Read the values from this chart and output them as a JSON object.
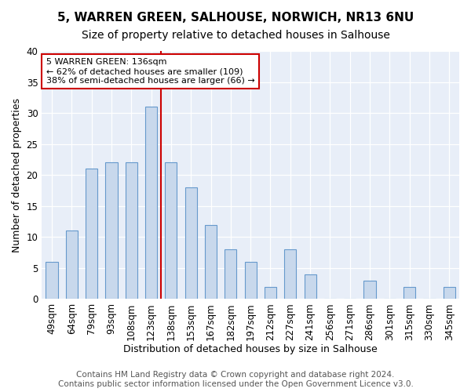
{
  "title1": "5, WARREN GREEN, SALHOUSE, NORWICH, NR13 6NU",
  "title2": "Size of property relative to detached houses in Salhouse",
  "xlabel": "Distribution of detached houses by size in Salhouse",
  "ylabel": "Number of detached properties",
  "categories": [
    "49sqm",
    "64sqm",
    "79sqm",
    "93sqm",
    "108sqm",
    "123sqm",
    "138sqm",
    "153sqm",
    "167sqm",
    "182sqm",
    "197sqm",
    "212sqm",
    "227sqm",
    "241sqm",
    "256sqm",
    "271sqm",
    "286sqm",
    "301sqm",
    "315sqm",
    "330sqm",
    "345sqm"
  ],
  "values": [
    6,
    11,
    21,
    22,
    22,
    31,
    22,
    18,
    12,
    8,
    6,
    2,
    8,
    4,
    0,
    0,
    3,
    0,
    2,
    0,
    2
  ],
  "bar_color": "#c8d8ec",
  "bar_edge_color": "#6699cc",
  "vline_x_index": 6,
  "vline_color": "#cc0000",
  "annotation_line1": "5 WARREN GREEN: 136sqm",
  "annotation_line2": "← 62% of detached houses are smaller (109)",
  "annotation_line3": "38% of semi-detached houses are larger (66) →",
  "annotation_box_color": "white",
  "annotation_box_edge": "#cc0000",
  "ylim": [
    0,
    40
  ],
  "yticks": [
    0,
    5,
    10,
    15,
    20,
    25,
    30,
    35,
    40
  ],
  "footer1": "Contains HM Land Registry data © Crown copyright and database right 2024.",
  "footer2": "Contains public sector information licensed under the Open Government Licence v3.0.",
  "plot_bg_color": "#e8eef8",
  "title1_fontsize": 11,
  "title2_fontsize": 10,
  "xlabel_fontsize": 9,
  "ylabel_fontsize": 9,
  "tick_fontsize": 8.5,
  "footer_fontsize": 7.5,
  "bar_width": 0.6
}
